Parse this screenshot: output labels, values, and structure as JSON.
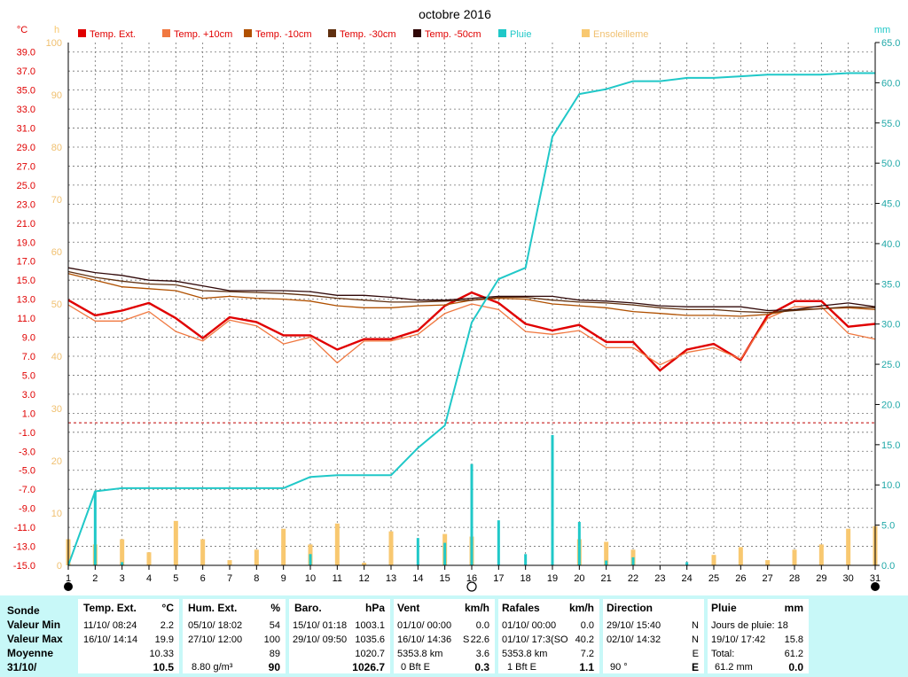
{
  "chart_data": {
    "type": "line",
    "title": "octobre 2016",
    "y_left_unit": "°C",
    "y_left_ticks": [
      "39.0",
      "37.0",
      "35.0",
      "33.0",
      "31.0",
      "29.0",
      "27.0",
      "25.0",
      "23.0",
      "21.0",
      "19.0",
      "17.0",
      "15.0",
      "13.0",
      "11.0",
      "9.0",
      "7.0",
      "5.0",
      "3.0",
      "1.0",
      "-1.0",
      "-3.0",
      "-5.0",
      "-7.0",
      "-9.0",
      "-11.0",
      "-13.0",
      "-15.0"
    ],
    "y_left_range": [
      -15,
      40
    ],
    "y_sun_unit": "h",
    "y_sun_ticks": [
      "100",
      "90",
      "80",
      "70",
      "60",
      "50",
      "40",
      "30",
      "20",
      "10",
      "0"
    ],
    "y_sun_range": [
      0,
      100
    ],
    "y_right_unit": "mm",
    "y_right_ticks": [
      "65.0",
      "60.0",
      "55.0",
      "50.0",
      "45.0",
      "40.0",
      "35.0",
      "30.0",
      "25.0",
      "20.0",
      "15.0",
      "10.0",
      "5.0",
      "0.0"
    ],
    "y_right_range": [
      0,
      65
    ],
    "x_ticks": [
      "1",
      "2",
      "3",
      "4",
      "5",
      "6",
      "7",
      "8",
      "9",
      "10",
      "11",
      "12",
      "13",
      "14",
      "15",
      "16",
      "17",
      "18",
      "19",
      "20",
      "21",
      "22",
      "23",
      "24",
      "25",
      "26",
      "27",
      "28",
      "29",
      "30",
      "31"
    ],
    "x_range": [
      1,
      31
    ],
    "grid": true,
    "zero_line": 0,
    "legend_position": "top",
    "series": [
      {
        "name": "Temp. Ext.",
        "axis": "left",
        "color": "#e00000",
        "x": [
          1,
          2,
          3,
          4,
          5,
          6,
          7,
          8,
          9,
          10,
          11,
          12,
          13,
          14,
          15,
          16,
          17,
          18,
          19,
          20,
          21,
          22,
          23,
          24,
          25,
          26,
          27,
          28,
          29,
          30,
          31
        ],
        "values": [
          12.9,
          11.3,
          11.8,
          12.6,
          11.0,
          8.9,
          11.1,
          10.6,
          9.2,
          9.2,
          7.7,
          8.8,
          8.8,
          9.7,
          12.3,
          13.7,
          12.6,
          10.4,
          9.7,
          10.3,
          8.5,
          8.5,
          5.5,
          7.7,
          8.3,
          6.6,
          11.3,
          12.8,
          12.8,
          10.1,
          10.4
        ]
      },
      {
        "name": "Temp. +10cm",
        "axis": "left",
        "color": "#f07840",
        "x": [
          1,
          2,
          3,
          4,
          5,
          6,
          7,
          8,
          9,
          10,
          11,
          12,
          13,
          14,
          15,
          16,
          17,
          18,
          19,
          20,
          21,
          22,
          23,
          24,
          25,
          26,
          27,
          28,
          29,
          30,
          31
        ],
        "values": [
          12.4,
          10.7,
          10.7,
          11.7,
          9.6,
          8.6,
          10.8,
          10.2,
          8.3,
          9.0,
          6.3,
          8.6,
          8.6,
          9.3,
          11.5,
          12.5,
          11.9,
          9.6,
          9.3,
          9.7,
          7.9,
          7.9,
          6.1,
          7.4,
          7.9,
          6.7,
          11.0,
          12.2,
          12.2,
          9.4,
          8.8
        ]
      },
      {
        "name": "Temp. -10cm",
        "axis": "left",
        "color": "#b05000",
        "x": [
          1,
          2,
          3,
          4,
          5,
          6,
          7,
          8,
          9,
          10,
          11,
          12,
          13,
          14,
          15,
          16,
          17,
          18,
          19,
          20,
          21,
          22,
          23,
          24,
          25,
          26,
          27,
          28,
          29,
          30,
          31
        ],
        "values": [
          15.7,
          15.0,
          14.3,
          14.1,
          13.9,
          13.1,
          13.3,
          13.1,
          13.0,
          12.8,
          12.3,
          12.1,
          12.1,
          12.3,
          12.4,
          12.9,
          13.1,
          13.0,
          12.5,
          12.3,
          12.1,
          11.7,
          11.5,
          11.3,
          11.3,
          11.2,
          11.4,
          11.9,
          12.0,
          12.1,
          11.9
        ]
      },
      {
        "name": "Temp. -30cm",
        "axis": "left",
        "color": "#603010",
        "x": [
          1,
          2,
          3,
          4,
          5,
          6,
          7,
          8,
          9,
          10,
          11,
          12,
          13,
          14,
          15,
          16,
          17,
          18,
          19,
          20,
          21,
          22,
          23,
          24,
          25,
          26,
          27,
          28,
          29,
          30,
          31
        ],
        "values": [
          15.9,
          15.3,
          14.9,
          14.6,
          14.5,
          13.9,
          13.8,
          13.7,
          13.6,
          13.4,
          13.1,
          12.9,
          12.7,
          12.7,
          12.8,
          12.9,
          13.2,
          13.2,
          12.9,
          12.7,
          12.6,
          12.4,
          12.1,
          11.9,
          11.9,
          11.7,
          11.6,
          11.8,
          12.0,
          12.2,
          12.1
        ]
      },
      {
        "name": "Temp. -50cm",
        "axis": "left",
        "color": "#300808",
        "x": [
          1,
          2,
          3,
          4,
          5,
          6,
          7,
          8,
          9,
          10,
          11,
          12,
          13,
          14,
          15,
          16,
          17,
          18,
          19,
          20,
          21,
          22,
          23,
          24,
          25,
          26,
          27,
          28,
          29,
          30,
          31
        ],
        "values": [
          16.3,
          15.8,
          15.5,
          15.0,
          14.9,
          14.4,
          13.9,
          13.9,
          13.9,
          13.8,
          13.4,
          13.4,
          13.2,
          12.9,
          12.9,
          13.1,
          13.3,
          13.3,
          13.3,
          12.9,
          12.8,
          12.6,
          12.3,
          12.2,
          12.2,
          12.2,
          11.8,
          11.9,
          12.3,
          12.6,
          12.2
        ]
      },
      {
        "name": "Pluie",
        "axis": "right",
        "color": "#20c8c8",
        "x": [
          1,
          2,
          3,
          4,
          5,
          6,
          7,
          8,
          9,
          10,
          11,
          12,
          13,
          14,
          15,
          16,
          17,
          18,
          19,
          20,
          21,
          22,
          23,
          24,
          25,
          26,
          27,
          28,
          29,
          30,
          31
        ],
        "values": [
          0,
          9.2,
          9.6,
          9.6,
          9.6,
          9.6,
          9.6,
          9.6,
          9.6,
          11.0,
          11.2,
          11.2,
          11.2,
          14.6,
          17.4,
          30.2,
          35.6,
          37.0,
          53.3,
          58.6,
          59.2,
          60.2,
          60.2,
          60.6,
          60.6,
          60.8,
          61.0,
          61.0,
          61.0,
          61.2,
          61.2
        ]
      },
      {
        "name": "Pluie",
        "axis": "right",
        "type": "bar",
        "color": "#20c8c8",
        "x": [
          2,
          3,
          10,
          14,
          15,
          16,
          17,
          18,
          19,
          20,
          21,
          22,
          24
        ],
        "values": [
          9.2,
          0.4,
          1.4,
          3.4,
          2.8,
          12.6,
          5.6,
          1.4,
          16.2,
          5.4,
          0.6,
          1.0,
          0.4
        ]
      },
      {
        "name": "Ensoleilleme",
        "axis": "sun",
        "type": "bar",
        "color": "#f8c870",
        "x": [
          1,
          2,
          3,
          4,
          5,
          6,
          7,
          8,
          9,
          10,
          11,
          12,
          13,
          14,
          15,
          16,
          17,
          18,
          19,
          20,
          21,
          22,
          23,
          24,
          25,
          26,
          27,
          28,
          29,
          30,
          31
        ],
        "values": [
          5,
          4,
          5,
          2.5,
          8.5,
          5,
          1,
          3,
          7,
          4,
          8,
          0.5,
          6.5,
          0,
          6,
          5.5,
          0,
          0,
          0,
          5,
          4.5,
          3,
          0,
          0,
          2,
          3.5,
          1,
          3,
          4,
          7,
          7.5
        ]
      }
    ]
  },
  "stats": {
    "labels": {
      "sonde": "Sonde",
      "min": "Valeur Min",
      "max": "Valeur Max",
      "moy": "Moyenne",
      "date": "31/10/"
    },
    "temp": {
      "title": "Temp. Ext.",
      "unit": "°C",
      "min_d": "11/10/  08:24",
      "min_v": "2.2",
      "max_d": "16/10/  14:14",
      "max_v": "19.9",
      "moy": "10.33",
      "cur": "10.5"
    },
    "hum": {
      "title": "Hum. Ext.",
      "unit": "%",
      "min_d": "05/10/  18:02",
      "min_v": "54",
      "max_d": "27/10/  12:00",
      "max_v": "100",
      "moy": "89",
      "cur_extra": "8.80 g/m³",
      "cur": "90"
    },
    "baro": {
      "title": "Baro.",
      "unit": "hPa",
      "min_d": "15/10/  01:18",
      "min_v": "1003.1",
      "max_d": "29/10/  09:50",
      "max_v": "1035.6",
      "moy": "1020.7",
      "cur": "1026.7"
    },
    "vent": {
      "title": "Vent",
      "unit": "km/h",
      "min_d": "01/10/  00:00",
      "min_v": "0.0",
      "max_d": "16/10/  14:36",
      "max_dir": "S",
      "max_v": "22.6",
      "moy_d": "5353.8 km",
      "moy": "3.6",
      "cur_extra": "0 Bft E",
      "cur": "0.3"
    },
    "rafales": {
      "title": "Rafales",
      "unit": "km/h",
      "min_d": "01/10/  00:00",
      "min_v": "0.0",
      "max_d": "01/10/  17:3(SO",
      "max_v": "40.2",
      "moy_d": "5353.8 km",
      "moy": "7.2",
      "cur_extra": "1 Bft E",
      "cur": "1.1"
    },
    "dir": {
      "title": "Direction",
      "min_d": "29/10/  15:40",
      "min_v": "N",
      "max_d": "02/10/  14:32",
      "max_v": "N",
      "moy": "E",
      "cur_extra": "90 °",
      "cur": "E"
    },
    "pluie": {
      "title": "Pluie",
      "unit": "mm",
      "jours": "Jours de pluie: 18",
      "max_d": "19/10/  17:42",
      "max_v": "15.8",
      "tot_l": "Total:",
      "tot_v": "61.2",
      "cur_extra": "61.2 mm",
      "cur": "0.0"
    }
  }
}
